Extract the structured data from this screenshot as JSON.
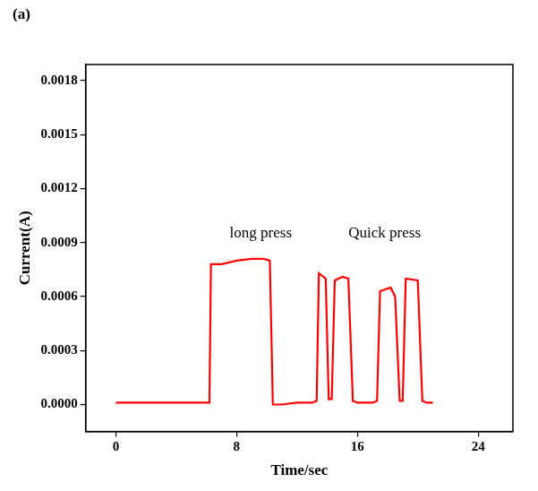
{
  "chart_data": {
    "type": "line",
    "panel": "(a)",
    "x_label": "Time/sec",
    "y_label": "Current(A)",
    "xlim": [
      -2,
      26.3
    ],
    "xticks": [
      0,
      8,
      16,
      24
    ],
    "ylim": [
      -0.00015,
      0.00189
    ],
    "yticks": [
      {
        "value": 0,
        "label": "0.0000"
      },
      {
        "value": 0.0003,
        "label": "0.0003"
      },
      {
        "value": 0.0006,
        "label": "0.0006"
      },
      {
        "value": 0.0009,
        "label": "0.0009"
      },
      {
        "value": 0.0012,
        "label": "0.0012"
      },
      {
        "value": 0.0015,
        "label": "0.0015"
      },
      {
        "value": 0.0018,
        "label": "0.0018"
      }
    ],
    "grid": false,
    "annotations": [
      {
        "text": "long press",
        "x": 9.6,
        "y": 0.00095
      },
      {
        "text": "Quick press",
        "x": 17.8,
        "y": 0.00095
      }
    ],
    "x": [
      0,
      1,
      2,
      3,
      4,
      5,
      6,
      6.2,
      6.3,
      7,
      8,
      9,
      9.8,
      10.2,
      10.4,
      11,
      12,
      13,
      13.3,
      13.45,
      13.9,
      14.1,
      14.3,
      14.5,
      15,
      15.4,
      15.7,
      16,
      17,
      17.3,
      17.5,
      18.2,
      18.5,
      18.8,
      19.0,
      19.2,
      20.0,
      20.3,
      20.6,
      21
    ],
    "series": [
      {
        "color": "#ff0000",
        "values": [
          1e-05,
          1e-05,
          1e-05,
          1e-05,
          1e-05,
          1e-05,
          1e-05,
          1e-05,
          0.00078,
          0.00078,
          0.0008,
          0.00081,
          0.00081,
          0.0008,
          0,
          0,
          1e-05,
          1e-05,
          2e-05,
          0.00073,
          0.0007,
          3e-05,
          3e-05,
          0.00069,
          0.00071,
          0.0007,
          2e-05,
          1e-05,
          1e-05,
          2e-05,
          0.00063,
          0.00065,
          0.0006,
          2e-05,
          2e-05,
          0.0007,
          0.00069,
          2e-05,
          1e-05,
          1e-05
        ]
      }
    ]
  }
}
